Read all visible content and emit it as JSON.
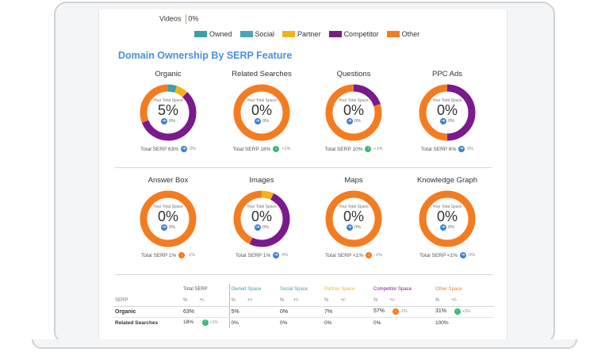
{
  "videos_row": {
    "label": "Videos",
    "value": "0%"
  },
  "legend": [
    {
      "label": "Owned",
      "color": "#3aa0a8"
    },
    {
      "label": "Social",
      "color": "#4aa6b8"
    },
    {
      "label": "Partner",
      "color": "#f2b31a"
    },
    {
      "label": "Competitor",
      "color": "#7a1a8c"
    },
    {
      "label": "Other",
      "color": "#f47c20"
    }
  ],
  "section_title": "Domain Ownership By SERP Feature",
  "your_total_space_label": "Your Total Space",
  "colors": {
    "owned": "#3aa0a8",
    "social": "#4aa6b8",
    "partner": "#f2b31a",
    "competitor": "#7a1a8c",
    "other": "#f47c20"
  },
  "donuts": [
    {
      "title": "Organic",
      "pct": "5%",
      "change": "0%",
      "change_icon": "arrow-right-icon",
      "total_label": "Total SERP 63%",
      "total_change": "0%",
      "total_icon": "arrow-right-icon",
      "segments": [
        {
          "key": "owned",
          "value": 5
        },
        {
          "key": "partner",
          "value": 7
        },
        {
          "key": "competitor",
          "value": 57
        },
        {
          "key": "other",
          "value": 31
        }
      ]
    },
    {
      "title": "Related Searches",
      "pct": "0%",
      "change": "0%",
      "change_icon": "arrow-right-icon",
      "total_label": "Total SERP 18%",
      "total_change": "+1%",
      "total_icon": "arrow-up-icon",
      "segments": [
        {
          "key": "other",
          "value": 100
        }
      ]
    },
    {
      "title": "Questions",
      "pct": "0%",
      "change": "0%",
      "change_icon": "arrow-right-icon",
      "total_label": "Total SERP 10%",
      "total_change": "+1%",
      "total_icon": "arrow-up-icon",
      "segments": [
        {
          "key": "competitor",
          "value": 20
        },
        {
          "key": "other",
          "value": 80
        }
      ]
    },
    {
      "title": "PPC Ads",
      "pct": "0%",
      "change": "0%",
      "change_icon": "arrow-right-icon",
      "total_label": "Total SERP 6%",
      "total_change": "0%",
      "total_icon": "arrow-right-icon",
      "segments": [
        {
          "key": "competitor",
          "value": 50
        },
        {
          "key": "other",
          "value": 50
        }
      ]
    },
    {
      "title": "Answer Box",
      "pct": "0%",
      "change": "0%",
      "change_icon": "arrow-right-icon",
      "total_label": "Total SERP 1%",
      "total_change": "-1%",
      "total_icon": "arrow-down-icon",
      "segments": [
        {
          "key": "other",
          "value": 100
        }
      ]
    },
    {
      "title": "Images",
      "pct": "0%",
      "change": "0%",
      "change_icon": "arrow-right-icon",
      "total_label": "Total SERP 1%",
      "total_change": "0%",
      "total_icon": "arrow-right-icon",
      "segments": [
        {
          "key": "partner",
          "value": 7
        },
        {
          "key": "competitor",
          "value": 50
        },
        {
          "key": "other",
          "value": 43
        }
      ]
    },
    {
      "title": "Maps",
      "pct": "0%",
      "change": "0%",
      "change_icon": "arrow-right-icon",
      "total_label": "Total SERP <1%",
      "total_change": "-1%",
      "total_icon": "arrow-down-icon",
      "segments": [
        {
          "key": "other",
          "value": 100
        }
      ]
    },
    {
      "title": "Knowledge Graph",
      "pct": "0%",
      "change": "0%",
      "change_icon": "arrow-right-icon",
      "total_label": "Total SERP <1%",
      "total_change": "0%",
      "total_icon": "arrow-right-icon",
      "segments": [
        {
          "key": "other",
          "value": 100
        }
      ]
    }
  ],
  "table": {
    "headers": {
      "total": "Total SERP",
      "owned": "Owned Space",
      "social": "Social Space",
      "partner": "Partner Space",
      "competitor": "Competitor Space",
      "other": "Other Space"
    },
    "sub": {
      "serp": "SERP",
      "pct": "%",
      "delta": "+/-"
    },
    "rows": [
      {
        "name": "Organic",
        "total": "63%",
        "owned": "5%",
        "social": "0%",
        "partner": "7%",
        "competitor": "57%",
        "competitor_delta": "-1%",
        "other": "31%",
        "other_delta": "+1%"
      },
      {
        "name": "Related Searches",
        "total": "18%",
        "total_delta": "+1%",
        "owned": "0%",
        "social": "0%",
        "partner": "0%",
        "competitor": "0%",
        "other": "100%"
      }
    ]
  }
}
